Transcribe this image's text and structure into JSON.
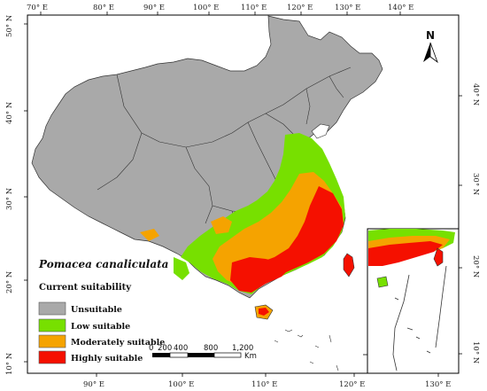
{
  "map": {
    "species_name": "Pomacea canaliculata",
    "top_lon_ticks": [
      "70° E",
      "80° E",
      "90° E",
      "100° E",
      "110° E",
      "120° E",
      "130° E",
      "140° E"
    ],
    "bottom_lon_ticks": [
      "90° E",
      "100° E",
      "110° E",
      "120° E",
      "130° E"
    ],
    "left_lat_ticks": [
      "50° N",
      "40° N",
      "30° N",
      "20° N",
      "10° N"
    ],
    "right_lat_ticks": [
      "40° N",
      "30° N",
      "20° N",
      "10° N"
    ],
    "north_arrow_label": "N",
    "colors": {
      "unsuitable": "#a9a9a9",
      "low": "#77e000",
      "moderate": "#f5a300",
      "high": "#f51000"
    }
  },
  "legend": {
    "title": "Current suitability",
    "items": [
      {
        "label": "Unsuitable",
        "color": "#a9a9a9"
      },
      {
        "label": "Low suitable",
        "color": "#77e000"
      },
      {
        "label": "Moderately suitable",
        "color": "#f5a300"
      },
      {
        "label": "Highly suitable",
        "color": "#f51000"
      }
    ]
  },
  "scale_bar": {
    "labels": [
      "0",
      "200",
      "400",
      "800",
      "1,200"
    ],
    "unit": "Km"
  }
}
